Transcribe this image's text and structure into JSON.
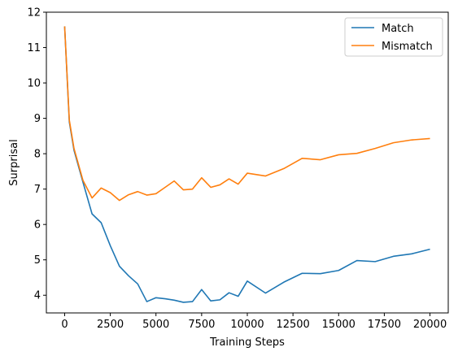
{
  "chart_data": {
    "type": "line",
    "title": "",
    "xlabel": "Training Steps",
    "ylabel": "Surprisal",
    "xlim": [
      -1000,
      21000
    ],
    "ylim": [
      3.5,
      12
    ],
    "x_ticks": [
      0,
      2500,
      5000,
      7500,
      10000,
      12500,
      15000,
      17500,
      20000
    ],
    "y_ticks": [
      4,
      5,
      6,
      7,
      8,
      9,
      10,
      11,
      12
    ],
    "grid": false,
    "legend_position": "top-right",
    "series": [
      {
        "name": "Match",
        "color": "#1f77b4",
        "x": [
          0,
          256,
          512,
          1000,
          1500,
          2000,
          2500,
          3000,
          3500,
          4000,
          4500,
          5000,
          5500,
          6000,
          6500,
          7000,
          7500,
          8000,
          8500,
          9000,
          9500,
          10000,
          11000,
          12000,
          13000,
          14000,
          15000,
          16000,
          17000,
          18000,
          19000,
          20000
        ],
        "y": [
          11.6,
          8.9,
          8.1,
          7.2,
          6.3,
          6.05,
          5.4,
          4.82,
          4.55,
          4.32,
          3.82,
          3.93,
          3.9,
          3.86,
          3.8,
          3.82,
          4.16,
          3.84,
          3.87,
          4.07,
          3.97,
          4.4,
          4.06,
          4.37,
          4.62,
          4.61,
          4.7,
          4.98,
          4.95,
          5.1,
          5.17,
          5.3
        ]
      },
      {
        "name": "Mismatch",
        "color": "#ff7f0e",
        "x": [
          0,
          256,
          512,
          1000,
          1500,
          2000,
          2500,
          3000,
          3500,
          4000,
          4500,
          5000,
          5500,
          6000,
          6500,
          7000,
          7500,
          8000,
          8500,
          9000,
          9500,
          10000,
          11000,
          12000,
          13000,
          14000,
          15000,
          16000,
          17000,
          18000,
          19000,
          20000
        ],
        "y": [
          11.6,
          8.95,
          8.15,
          7.25,
          6.75,
          7.03,
          6.9,
          6.68,
          6.84,
          6.93,
          6.83,
          6.87,
          7.05,
          7.23,
          6.98,
          7.0,
          7.32,
          7.05,
          7.12,
          7.29,
          7.14,
          7.45,
          7.37,
          7.58,
          7.87,
          7.83,
          7.97,
          8.01,
          8.15,
          8.31,
          8.39,
          8.43
        ]
      }
    ]
  }
}
